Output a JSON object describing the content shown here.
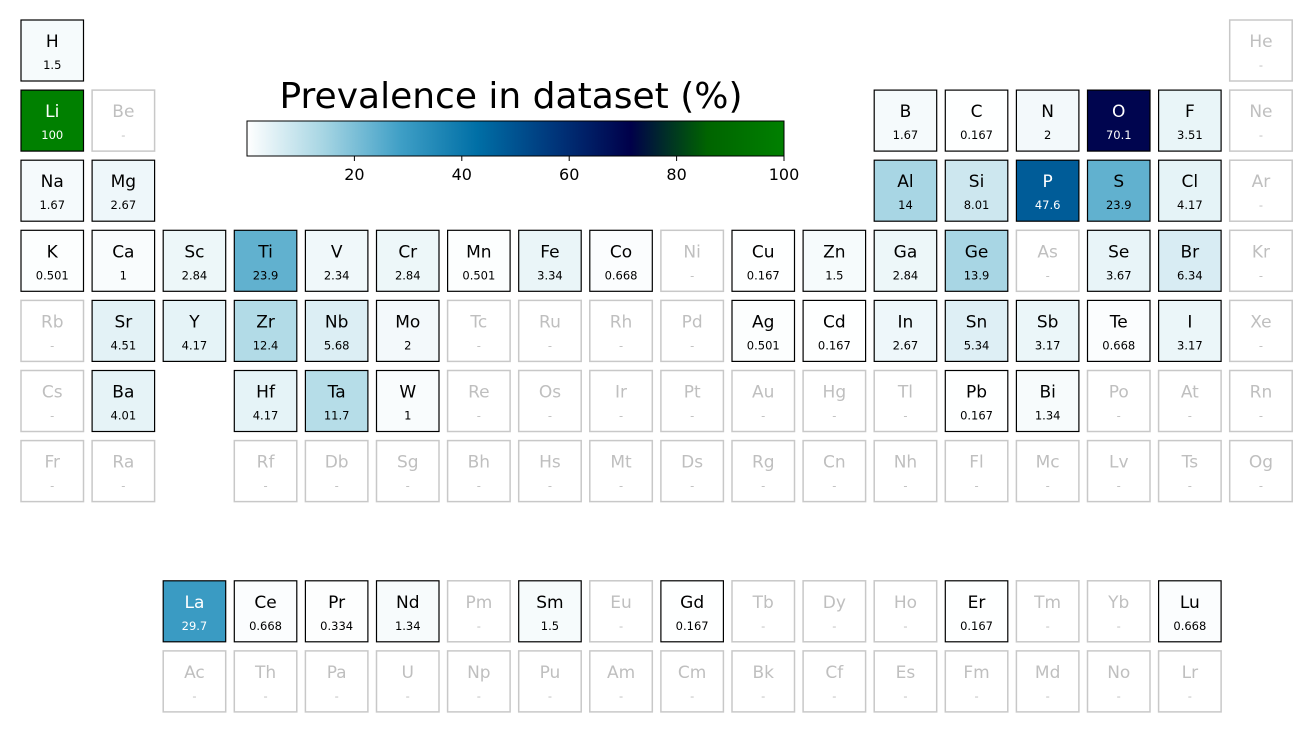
{
  "chart_data": {
    "type": "heatmap",
    "title": "Prevalence in dataset (%)",
    "colorbar": {
      "min": 0,
      "max": 100,
      "ticks": [
        "20",
        "40",
        "60",
        "80",
        "100"
      ],
      "colors": [
        "#ffffff",
        "#a6d5e3",
        "#3f9fc6",
        "#006fa6",
        "#00367b",
        "#00004a",
        "#006400",
        "#008000"
      ]
    },
    "missing_label": "-",
    "elements": [
      {
        "symbol": "H",
        "row": 1,
        "col": 1,
        "value": 1.5,
        "label": "1.5"
      },
      {
        "symbol": "He",
        "row": 1,
        "col": 18,
        "value": null,
        "label": "-"
      },
      {
        "symbol": "Li",
        "row": 2,
        "col": 1,
        "value": 100,
        "label": "100"
      },
      {
        "symbol": "Be",
        "row": 2,
        "col": 2,
        "value": null,
        "label": "-"
      },
      {
        "symbol": "B",
        "row": 2,
        "col": 13,
        "value": 1.67,
        "label": "1.67"
      },
      {
        "symbol": "C",
        "row": 2,
        "col": 14,
        "value": 0.167,
        "label": "0.167"
      },
      {
        "symbol": "N",
        "row": 2,
        "col": 15,
        "value": 2,
        "label": "2"
      },
      {
        "symbol": "O",
        "row": 2,
        "col": 16,
        "value": 70.1,
        "label": "70.1"
      },
      {
        "symbol": "F",
        "row": 2,
        "col": 17,
        "value": 3.51,
        "label": "3.51"
      },
      {
        "symbol": "Ne",
        "row": 2,
        "col": 18,
        "value": null,
        "label": "-"
      },
      {
        "symbol": "Na",
        "row": 3,
        "col": 1,
        "value": 1.67,
        "label": "1.67"
      },
      {
        "symbol": "Mg",
        "row": 3,
        "col": 2,
        "value": 2.67,
        "label": "2.67"
      },
      {
        "symbol": "Al",
        "row": 3,
        "col": 13,
        "value": 14,
        "label": "14"
      },
      {
        "symbol": "Si",
        "row": 3,
        "col": 14,
        "value": 8.01,
        "label": "8.01"
      },
      {
        "symbol": "P",
        "row": 3,
        "col": 15,
        "value": 47.6,
        "label": "47.6"
      },
      {
        "symbol": "S",
        "row": 3,
        "col": 16,
        "value": 23.9,
        "label": "23.9"
      },
      {
        "symbol": "Cl",
        "row": 3,
        "col": 17,
        "value": 4.17,
        "label": "4.17"
      },
      {
        "symbol": "Ar",
        "row": 3,
        "col": 18,
        "value": null,
        "label": "-"
      },
      {
        "symbol": "K",
        "row": 4,
        "col": 1,
        "value": 0.501,
        "label": "0.501"
      },
      {
        "symbol": "Ca",
        "row": 4,
        "col": 2,
        "value": 1,
        "label": "1"
      },
      {
        "symbol": "Sc",
        "row": 4,
        "col": 3,
        "value": 2.84,
        "label": "2.84"
      },
      {
        "symbol": "Ti",
        "row": 4,
        "col": 4,
        "value": 23.9,
        "label": "23.9"
      },
      {
        "symbol": "V",
        "row": 4,
        "col": 5,
        "value": 2.34,
        "label": "2.34"
      },
      {
        "symbol": "Cr",
        "row": 4,
        "col": 6,
        "value": 2.84,
        "label": "2.84"
      },
      {
        "symbol": "Mn",
        "row": 4,
        "col": 7,
        "value": 0.501,
        "label": "0.501"
      },
      {
        "symbol": "Fe",
        "row": 4,
        "col": 8,
        "value": 3.34,
        "label": "3.34"
      },
      {
        "symbol": "Co",
        "row": 4,
        "col": 9,
        "value": 0.668,
        "label": "0.668"
      },
      {
        "symbol": "Ni",
        "row": 4,
        "col": 10,
        "value": null,
        "label": "-"
      },
      {
        "symbol": "Cu",
        "row": 4,
        "col": 11,
        "value": 0.167,
        "label": "0.167"
      },
      {
        "symbol": "Zn",
        "row": 4,
        "col": 12,
        "value": 1.5,
        "label": "1.5"
      },
      {
        "symbol": "Ga",
        "row": 4,
        "col": 13,
        "value": 2.84,
        "label": "2.84"
      },
      {
        "symbol": "Ge",
        "row": 4,
        "col": 14,
        "value": 13.9,
        "label": "13.9"
      },
      {
        "symbol": "As",
        "row": 4,
        "col": 15,
        "value": null,
        "label": "-"
      },
      {
        "symbol": "Se",
        "row": 4,
        "col": 16,
        "value": 3.67,
        "label": "3.67"
      },
      {
        "symbol": "Br",
        "row": 4,
        "col": 17,
        "value": 6.34,
        "label": "6.34"
      },
      {
        "symbol": "Kr",
        "row": 4,
        "col": 18,
        "value": null,
        "label": "-"
      },
      {
        "symbol": "Rb",
        "row": 5,
        "col": 1,
        "value": null,
        "label": "-"
      },
      {
        "symbol": "Sr",
        "row": 5,
        "col": 2,
        "value": 4.51,
        "label": "4.51"
      },
      {
        "symbol": "Y",
        "row": 5,
        "col": 3,
        "value": 4.17,
        "label": "4.17"
      },
      {
        "symbol": "Zr",
        "row": 5,
        "col": 4,
        "value": 12.4,
        "label": "12.4"
      },
      {
        "symbol": "Nb",
        "row": 5,
        "col": 5,
        "value": 5.68,
        "label": "5.68"
      },
      {
        "symbol": "Mo",
        "row": 5,
        "col": 6,
        "value": 2,
        "label": "2"
      },
      {
        "symbol": "Tc",
        "row": 5,
        "col": 7,
        "value": null,
        "label": "-"
      },
      {
        "symbol": "Ru",
        "row": 5,
        "col": 8,
        "value": null,
        "label": "-"
      },
      {
        "symbol": "Rh",
        "row": 5,
        "col": 9,
        "value": null,
        "label": "-"
      },
      {
        "symbol": "Pd",
        "row": 5,
        "col": 10,
        "value": null,
        "label": "-"
      },
      {
        "symbol": "Ag",
        "row": 5,
        "col": 11,
        "value": 0.501,
        "label": "0.501"
      },
      {
        "symbol": "Cd",
        "row": 5,
        "col": 12,
        "value": 0.167,
        "label": "0.167"
      },
      {
        "symbol": "In",
        "row": 5,
        "col": 13,
        "value": 2.67,
        "label": "2.67"
      },
      {
        "symbol": "Sn",
        "row": 5,
        "col": 14,
        "value": 5.34,
        "label": "5.34"
      },
      {
        "symbol": "Sb",
        "row": 5,
        "col": 15,
        "value": 3.17,
        "label": "3.17"
      },
      {
        "symbol": "Te",
        "row": 5,
        "col": 16,
        "value": 0.668,
        "label": "0.668"
      },
      {
        "symbol": "I",
        "row": 5,
        "col": 17,
        "value": 3.17,
        "label": "3.17"
      },
      {
        "symbol": "Xe",
        "row": 5,
        "col": 18,
        "value": null,
        "label": "-"
      },
      {
        "symbol": "Cs",
        "row": 6,
        "col": 1,
        "value": null,
        "label": "-"
      },
      {
        "symbol": "Ba",
        "row": 6,
        "col": 2,
        "value": 4.01,
        "label": "4.01"
      },
      {
        "symbol": "Hf",
        "row": 6,
        "col": 4,
        "value": 4.17,
        "label": "4.17"
      },
      {
        "symbol": "Ta",
        "row": 6,
        "col": 5,
        "value": 11.7,
        "label": "11.7"
      },
      {
        "symbol": "W",
        "row": 6,
        "col": 6,
        "value": 1,
        "label": "1"
      },
      {
        "symbol": "Re",
        "row": 6,
        "col": 7,
        "value": null,
        "label": "-"
      },
      {
        "symbol": "Os",
        "row": 6,
        "col": 8,
        "value": null,
        "label": "-"
      },
      {
        "symbol": "Ir",
        "row": 6,
        "col": 9,
        "value": null,
        "label": "-"
      },
      {
        "symbol": "Pt",
        "row": 6,
        "col": 10,
        "value": null,
        "label": "-"
      },
      {
        "symbol": "Au",
        "row": 6,
        "col": 11,
        "value": null,
        "label": "-"
      },
      {
        "symbol": "Hg",
        "row": 6,
        "col": 12,
        "value": null,
        "label": "-"
      },
      {
        "symbol": "Tl",
        "row": 6,
        "col": 13,
        "value": null,
        "label": "-"
      },
      {
        "symbol": "Pb",
        "row": 6,
        "col": 14,
        "value": 0.167,
        "label": "0.167"
      },
      {
        "symbol": "Bi",
        "row": 6,
        "col": 15,
        "value": 1.34,
        "label": "1.34"
      },
      {
        "symbol": "Po",
        "row": 6,
        "col": 16,
        "value": null,
        "label": "-"
      },
      {
        "symbol": "At",
        "row": 6,
        "col": 17,
        "value": null,
        "label": "-"
      },
      {
        "symbol": "Rn",
        "row": 6,
        "col": 18,
        "value": null,
        "label": "-"
      },
      {
        "symbol": "Fr",
        "row": 7,
        "col": 1,
        "value": null,
        "label": "-"
      },
      {
        "symbol": "Ra",
        "row": 7,
        "col": 2,
        "value": null,
        "label": "-"
      },
      {
        "symbol": "Rf",
        "row": 7,
        "col": 4,
        "value": null,
        "label": "-"
      },
      {
        "symbol": "Db",
        "row": 7,
        "col": 5,
        "value": null,
        "label": "-"
      },
      {
        "symbol": "Sg",
        "row": 7,
        "col": 6,
        "value": null,
        "label": "-"
      },
      {
        "symbol": "Bh",
        "row": 7,
        "col": 7,
        "value": null,
        "label": "-"
      },
      {
        "symbol": "Hs",
        "row": 7,
        "col": 8,
        "value": null,
        "label": "-"
      },
      {
        "symbol": "Mt",
        "row": 7,
        "col": 9,
        "value": null,
        "label": "-"
      },
      {
        "symbol": "Ds",
        "row": 7,
        "col": 10,
        "value": null,
        "label": "-"
      },
      {
        "symbol": "Rg",
        "row": 7,
        "col": 11,
        "value": null,
        "label": "-"
      },
      {
        "symbol": "Cn",
        "row": 7,
        "col": 12,
        "value": null,
        "label": "-"
      },
      {
        "symbol": "Nh",
        "row": 7,
        "col": 13,
        "value": null,
        "label": "-"
      },
      {
        "symbol": "Fl",
        "row": 7,
        "col": 14,
        "value": null,
        "label": "-"
      },
      {
        "symbol": "Mc",
        "row": 7,
        "col": 15,
        "value": null,
        "label": "-"
      },
      {
        "symbol": "Lv",
        "row": 7,
        "col": 16,
        "value": null,
        "label": "-"
      },
      {
        "symbol": "Ts",
        "row": 7,
        "col": 17,
        "value": null,
        "label": "-"
      },
      {
        "symbol": "Og",
        "row": 7,
        "col": 18,
        "value": null,
        "label": "-"
      },
      {
        "symbol": "La",
        "row": 9,
        "col": 3,
        "value": 29.7,
        "label": "29.7"
      },
      {
        "symbol": "Ce",
        "row": 9,
        "col": 4,
        "value": 0.668,
        "label": "0.668"
      },
      {
        "symbol": "Pr",
        "row": 9,
        "col": 5,
        "value": 0.334,
        "label": "0.334"
      },
      {
        "symbol": "Nd",
        "row": 9,
        "col": 6,
        "value": 1.34,
        "label": "1.34"
      },
      {
        "symbol": "Pm",
        "row": 9,
        "col": 7,
        "value": null,
        "label": "-"
      },
      {
        "symbol": "Sm",
        "row": 9,
        "col": 8,
        "value": 1.5,
        "label": "1.5"
      },
      {
        "symbol": "Eu",
        "row": 9,
        "col": 9,
        "value": null,
        "label": "-"
      },
      {
        "symbol": "Gd",
        "row": 9,
        "col": 10,
        "value": 0.167,
        "label": "0.167"
      },
      {
        "symbol": "Tb",
        "row": 9,
        "col": 11,
        "value": null,
        "label": "-"
      },
      {
        "symbol": "Dy",
        "row": 9,
        "col": 12,
        "value": null,
        "label": "-"
      },
      {
        "symbol": "Ho",
        "row": 9,
        "col": 13,
        "value": null,
        "label": "-"
      },
      {
        "symbol": "Er",
        "row": 9,
        "col": 14,
        "value": 0.167,
        "label": "0.167"
      },
      {
        "symbol": "Tm",
        "row": 9,
        "col": 15,
        "value": null,
        "label": "-"
      },
      {
        "symbol": "Yb",
        "row": 9,
        "col": 16,
        "value": null,
        "label": "-"
      },
      {
        "symbol": "Lu",
        "row": 9,
        "col": 17,
        "value": 0.668,
        "label": "0.668"
      },
      {
        "symbol": "Ac",
        "row": 10,
        "col": 3,
        "value": null,
        "label": "-"
      },
      {
        "symbol": "Th",
        "row": 10,
        "col": 4,
        "value": null,
        "label": "-"
      },
      {
        "symbol": "Pa",
        "row": 10,
        "col": 5,
        "value": null,
        "label": "-"
      },
      {
        "symbol": "U",
        "row": 10,
        "col": 6,
        "value": null,
        "label": "-"
      },
      {
        "symbol": "Np",
        "row": 10,
        "col": 7,
        "value": null,
        "label": "-"
      },
      {
        "symbol": "Pu",
        "row": 10,
        "col": 8,
        "value": null,
        "label": "-"
      },
      {
        "symbol": "Am",
        "row": 10,
        "col": 9,
        "value": null,
        "label": "-"
      },
      {
        "symbol": "Cm",
        "row": 10,
        "col": 10,
        "value": null,
        "label": "-"
      },
      {
        "symbol": "Bk",
        "row": 10,
        "col": 11,
        "value": null,
        "label": "-"
      },
      {
        "symbol": "Cf",
        "row": 10,
        "col": 12,
        "value": null,
        "label": "-"
      },
      {
        "symbol": "Es",
        "row": 10,
        "col": 13,
        "value": null,
        "label": "-"
      },
      {
        "symbol": "Fm",
        "row": 10,
        "col": 14,
        "value": null,
        "label": "-"
      },
      {
        "symbol": "Md",
        "row": 10,
        "col": 15,
        "value": null,
        "label": "-"
      },
      {
        "symbol": "No",
        "row": 10,
        "col": 16,
        "value": null,
        "label": "-"
      },
      {
        "symbol": "Lr",
        "row": 10,
        "col": 17,
        "value": null,
        "label": "-"
      }
    ]
  }
}
